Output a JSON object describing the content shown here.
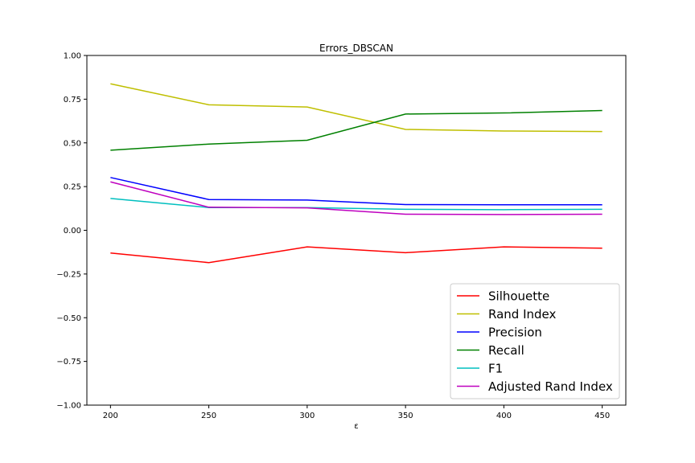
{
  "chart_data": {
    "type": "line",
    "title": "Errors_DBSCAN",
    "xlabel": "ε",
    "ylabel": "",
    "x": [
      200,
      250,
      300,
      350,
      400,
      450
    ],
    "xticks": [
      200,
      250,
      300,
      350,
      400,
      450
    ],
    "xlim": [
      188,
      462
    ],
    "ylim": [
      -1.0,
      1.0
    ],
    "yticks": [
      -1.0,
      -0.75,
      -0.5,
      -0.25,
      0.0,
      0.25,
      0.5,
      0.75,
      1.0
    ],
    "ytick_labels": [
      "−1.00",
      "−0.75",
      "−0.50",
      "−0.25",
      "0.00",
      "0.25",
      "0.50",
      "0.75",
      "1.00"
    ],
    "grid": false,
    "legend_position": "lower-right",
    "series": [
      {
        "name": "Silhouette",
        "color": "#ff0000",
        "values": [
          -0.13,
          -0.185,
          -0.095,
          -0.128,
          -0.095,
          -0.102
        ]
      },
      {
        "name": "Rand Index",
        "color": "#bfbf00",
        "values": [
          0.838,
          0.718,
          0.705,
          0.577,
          0.568,
          0.565
        ]
      },
      {
        "name": "Precision",
        "color": "#0000ff",
        "values": [
          0.302,
          0.176,
          0.173,
          0.147,
          0.146,
          0.146
        ]
      },
      {
        "name": "Recall",
        "color": "#008000",
        "values": [
          0.458,
          0.493,
          0.515,
          0.665,
          0.671,
          0.685
        ]
      },
      {
        "name": "F1",
        "color": "#00bfbf",
        "values": [
          0.182,
          0.13,
          0.13,
          0.12,
          0.118,
          0.12
        ]
      },
      {
        "name": "Adjusted Rand Index",
        "color": "#bf00bf",
        "values": [
          0.277,
          0.132,
          0.128,
          0.092,
          0.09,
          0.092
        ]
      }
    ]
  }
}
